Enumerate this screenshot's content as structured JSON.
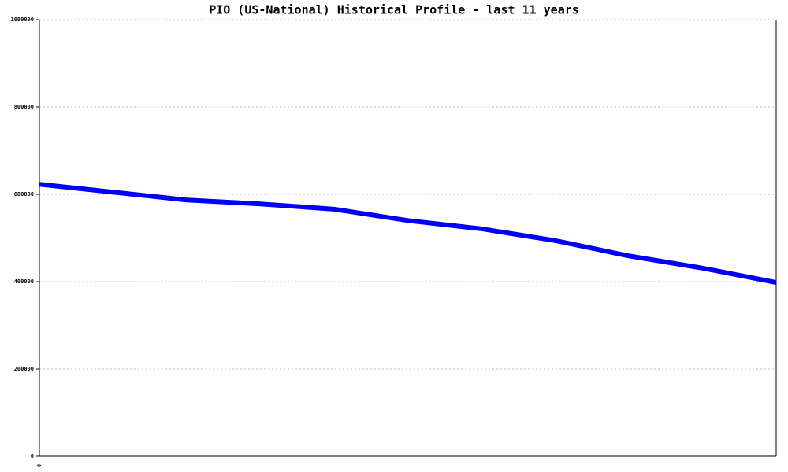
{
  "chart_data": {
    "type": "line",
    "title": "PIO (US-National) Historical Profile - last 11 years",
    "categories": [
      "0",
      null,
      null,
      null,
      null,
      null,
      null,
      null,
      null,
      null,
      null
    ],
    "series": [
      {
        "color": "#0000ff",
        "values": [
          623000,
          605000,
          587000,
          578000,
          566000,
          540000,
          521000,
          494000,
          459000,
          431000,
          398000
        ]
      }
    ],
    "ylim": [
      0,
      1000000
    ],
    "yticks": [
      0,
      200000,
      400000,
      600000,
      800000,
      1000000
    ],
    "grid": true
  }
}
